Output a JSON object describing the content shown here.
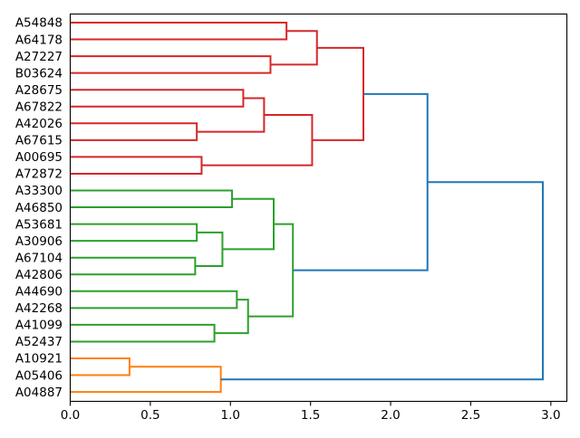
{
  "figure": {
    "background": "#ffffff",
    "title": ""
  },
  "chart_data": {
    "type": "dendrogram",
    "orientation": "horizontal-leaves-left",
    "title": "",
    "xlabel": "",
    "ylabel": "",
    "grid": false,
    "legend": null,
    "xlim": [
      0,
      3.1
    ],
    "x_ticks": [
      0.0,
      0.5,
      1.0,
      1.5,
      2.0,
      2.5,
      3.0
    ],
    "x_tick_labels": [
      "0.0",
      "0.5",
      "1.0",
      "1.5",
      "2.0",
      "2.5",
      "3.0"
    ],
    "colors": {
      "red": "#d62728",
      "green": "#2ca02c",
      "orange": "#ff7f0e",
      "blue": "#1f77b4",
      "spine": "#000000"
    },
    "leaves": [
      "A54848",
      "A64178",
      "A27227",
      "B03624",
      "A28675",
      "A67822",
      "A42026",
      "A67615",
      "A00695",
      "A72872",
      "A33300",
      "A46850",
      "A53681",
      "A30906",
      "A67104",
      "A42806",
      "A44690",
      "A42268",
      "A41099",
      "A52437",
      "A10921",
      "A05406",
      "A04887"
    ],
    "merges": [
      {
        "id": "M0",
        "a": "L0",
        "b": "L1",
        "height": 1.35,
        "color": "red"
      },
      {
        "id": "M1",
        "a": "L2",
        "b": "L3",
        "height": 1.25,
        "color": "red"
      },
      {
        "id": "M2",
        "a": "M0",
        "b": "M1",
        "height": 1.54,
        "color": "red"
      },
      {
        "id": "M3",
        "a": "L4",
        "b": "L5",
        "height": 1.08,
        "color": "red"
      },
      {
        "id": "M4",
        "a": "L6",
        "b": "L7",
        "height": 0.79,
        "color": "red"
      },
      {
        "id": "M5",
        "a": "M3",
        "b": "M4",
        "height": 1.21,
        "color": "red"
      },
      {
        "id": "M6",
        "a": "L8",
        "b": "L9",
        "height": 0.82,
        "color": "red"
      },
      {
        "id": "M7",
        "a": "M5",
        "b": "M6",
        "height": 1.51,
        "color": "red"
      },
      {
        "id": "M8",
        "a": "M2",
        "b": "M7",
        "height": 1.83,
        "color": "red"
      },
      {
        "id": "M9",
        "a": "L10",
        "b": "L11",
        "height": 1.01,
        "color": "green"
      },
      {
        "id": "M10",
        "a": "L12",
        "b": "L13",
        "height": 0.79,
        "color": "green"
      },
      {
        "id": "M11",
        "a": "L14",
        "b": "L15",
        "height": 0.78,
        "color": "green"
      },
      {
        "id": "M12",
        "a": "M10",
        "b": "M11",
        "height": 0.95,
        "color": "green"
      },
      {
        "id": "M13",
        "a": "M9",
        "b": "M12",
        "height": 1.27,
        "color": "green"
      },
      {
        "id": "M14",
        "a": "L16",
        "b": "L17",
        "height": 1.04,
        "color": "green"
      },
      {
        "id": "M15",
        "a": "L18",
        "b": "L19",
        "height": 0.9,
        "color": "green"
      },
      {
        "id": "M16",
        "a": "M14",
        "b": "M15",
        "height": 1.11,
        "color": "green"
      },
      {
        "id": "M17",
        "a": "M13",
        "b": "M16",
        "height": 1.39,
        "color": "green"
      },
      {
        "id": "M18",
        "a": "L20",
        "b": "L21",
        "height": 0.37,
        "color": "orange"
      },
      {
        "id": "M19",
        "a": "M18",
        "b": "L22",
        "height": 0.94,
        "color": "orange"
      },
      {
        "id": "M20",
        "a": "M8",
        "b": "M17",
        "height": 2.23,
        "color": "blue"
      },
      {
        "id": "M21",
        "a": "M20",
        "b": "M19",
        "height": 2.95,
        "color": "blue"
      }
    ]
  }
}
